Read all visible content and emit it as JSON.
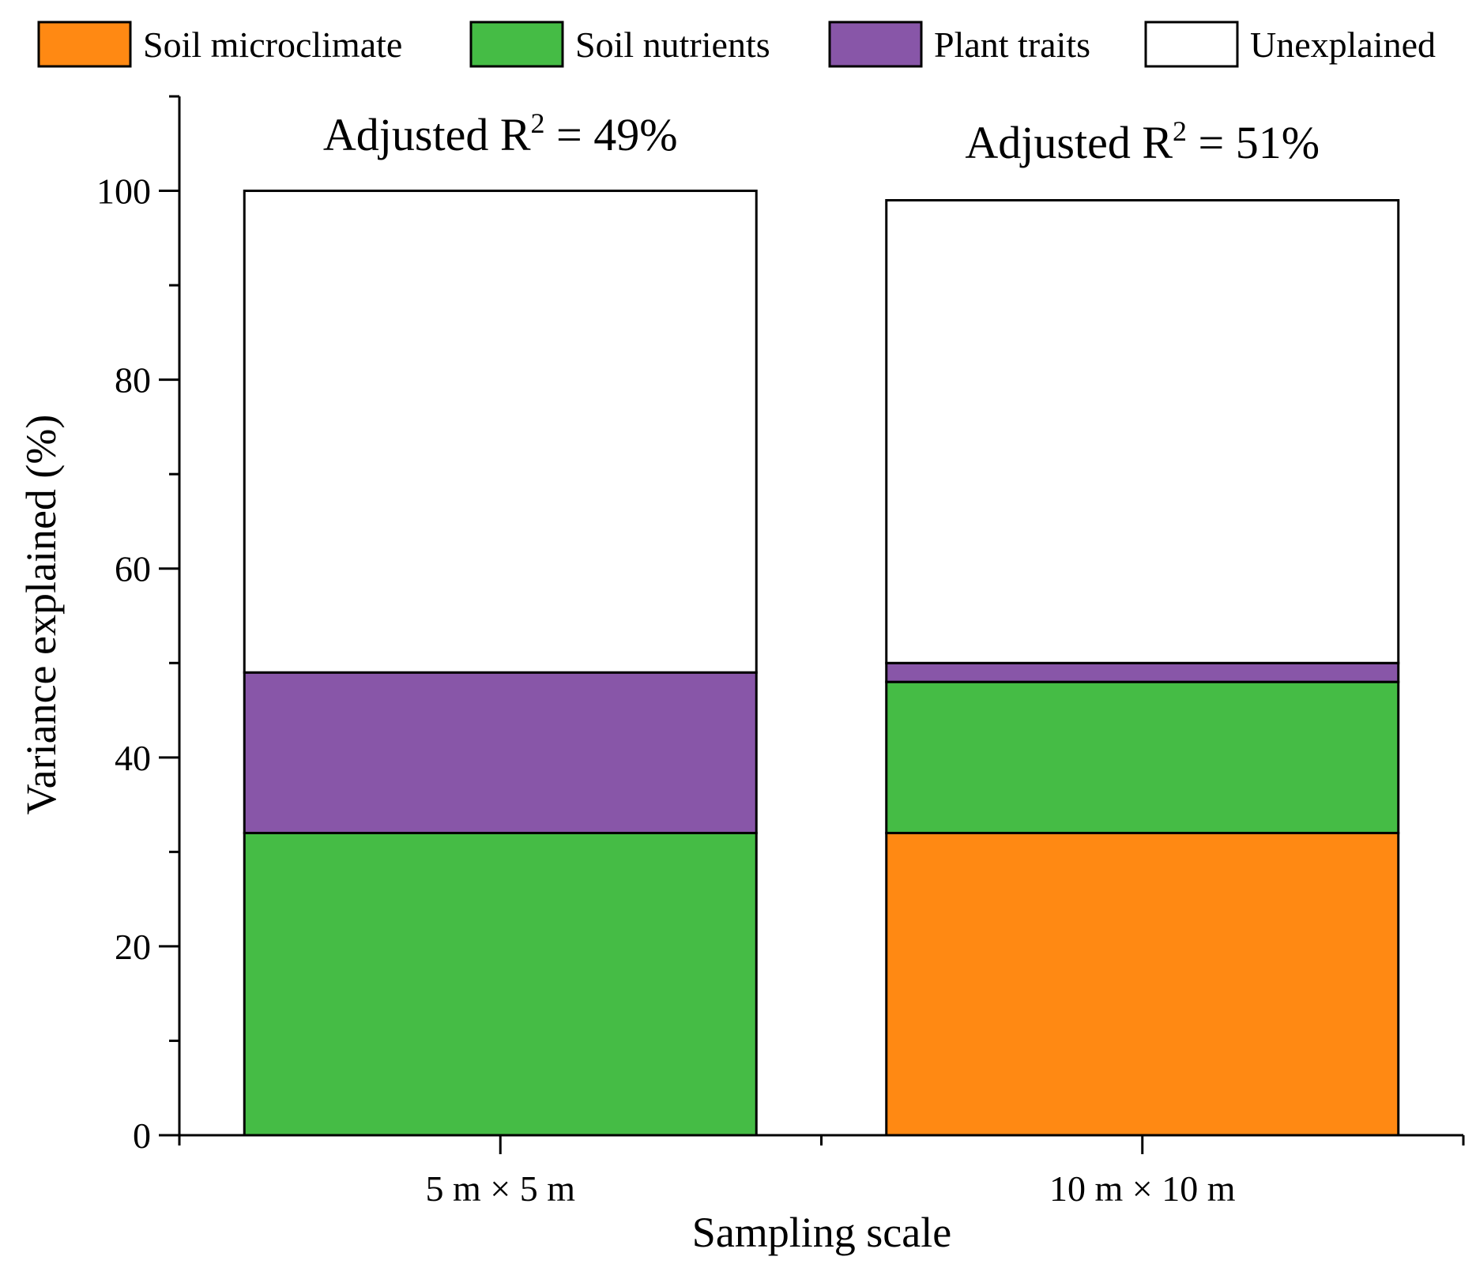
{
  "chart_data": {
    "type": "bar",
    "stacked": true,
    "title": "",
    "xlabel": "Sampling scale",
    "ylabel": "Variance explained (%)",
    "ylim": [
      0,
      110
    ],
    "yticks": [
      0,
      20,
      40,
      60,
      80,
      100
    ],
    "categories": [
      "5 m × 5 m",
      "10 m × 10 m"
    ],
    "series": [
      {
        "name": "Soil microclimate",
        "color": "#ff8913",
        "values": [
          0,
          32
        ]
      },
      {
        "name": "Soil nutrients",
        "color": "#45bc45",
        "values": [
          32,
          16
        ]
      },
      {
        "name": "Plant traits",
        "color": "#8856a8",
        "values": [
          17,
          2
        ]
      },
      {
        "name": "Unexplained",
        "color": "#ffffff",
        "values": [
          51,
          49
        ]
      }
    ],
    "annotations": [
      {
        "category": "5 m × 5 m",
        "prefix": "Adjusted R",
        "superscript": "2",
        "suffix": " = 49%"
      },
      {
        "category": "10 m × 10 m",
        "prefix": "Adjusted R",
        "superscript": "2",
        "suffix": " = 51%"
      }
    ],
    "legend": {
      "position": "top",
      "orientation": "horizontal"
    },
    "grid": false
  }
}
